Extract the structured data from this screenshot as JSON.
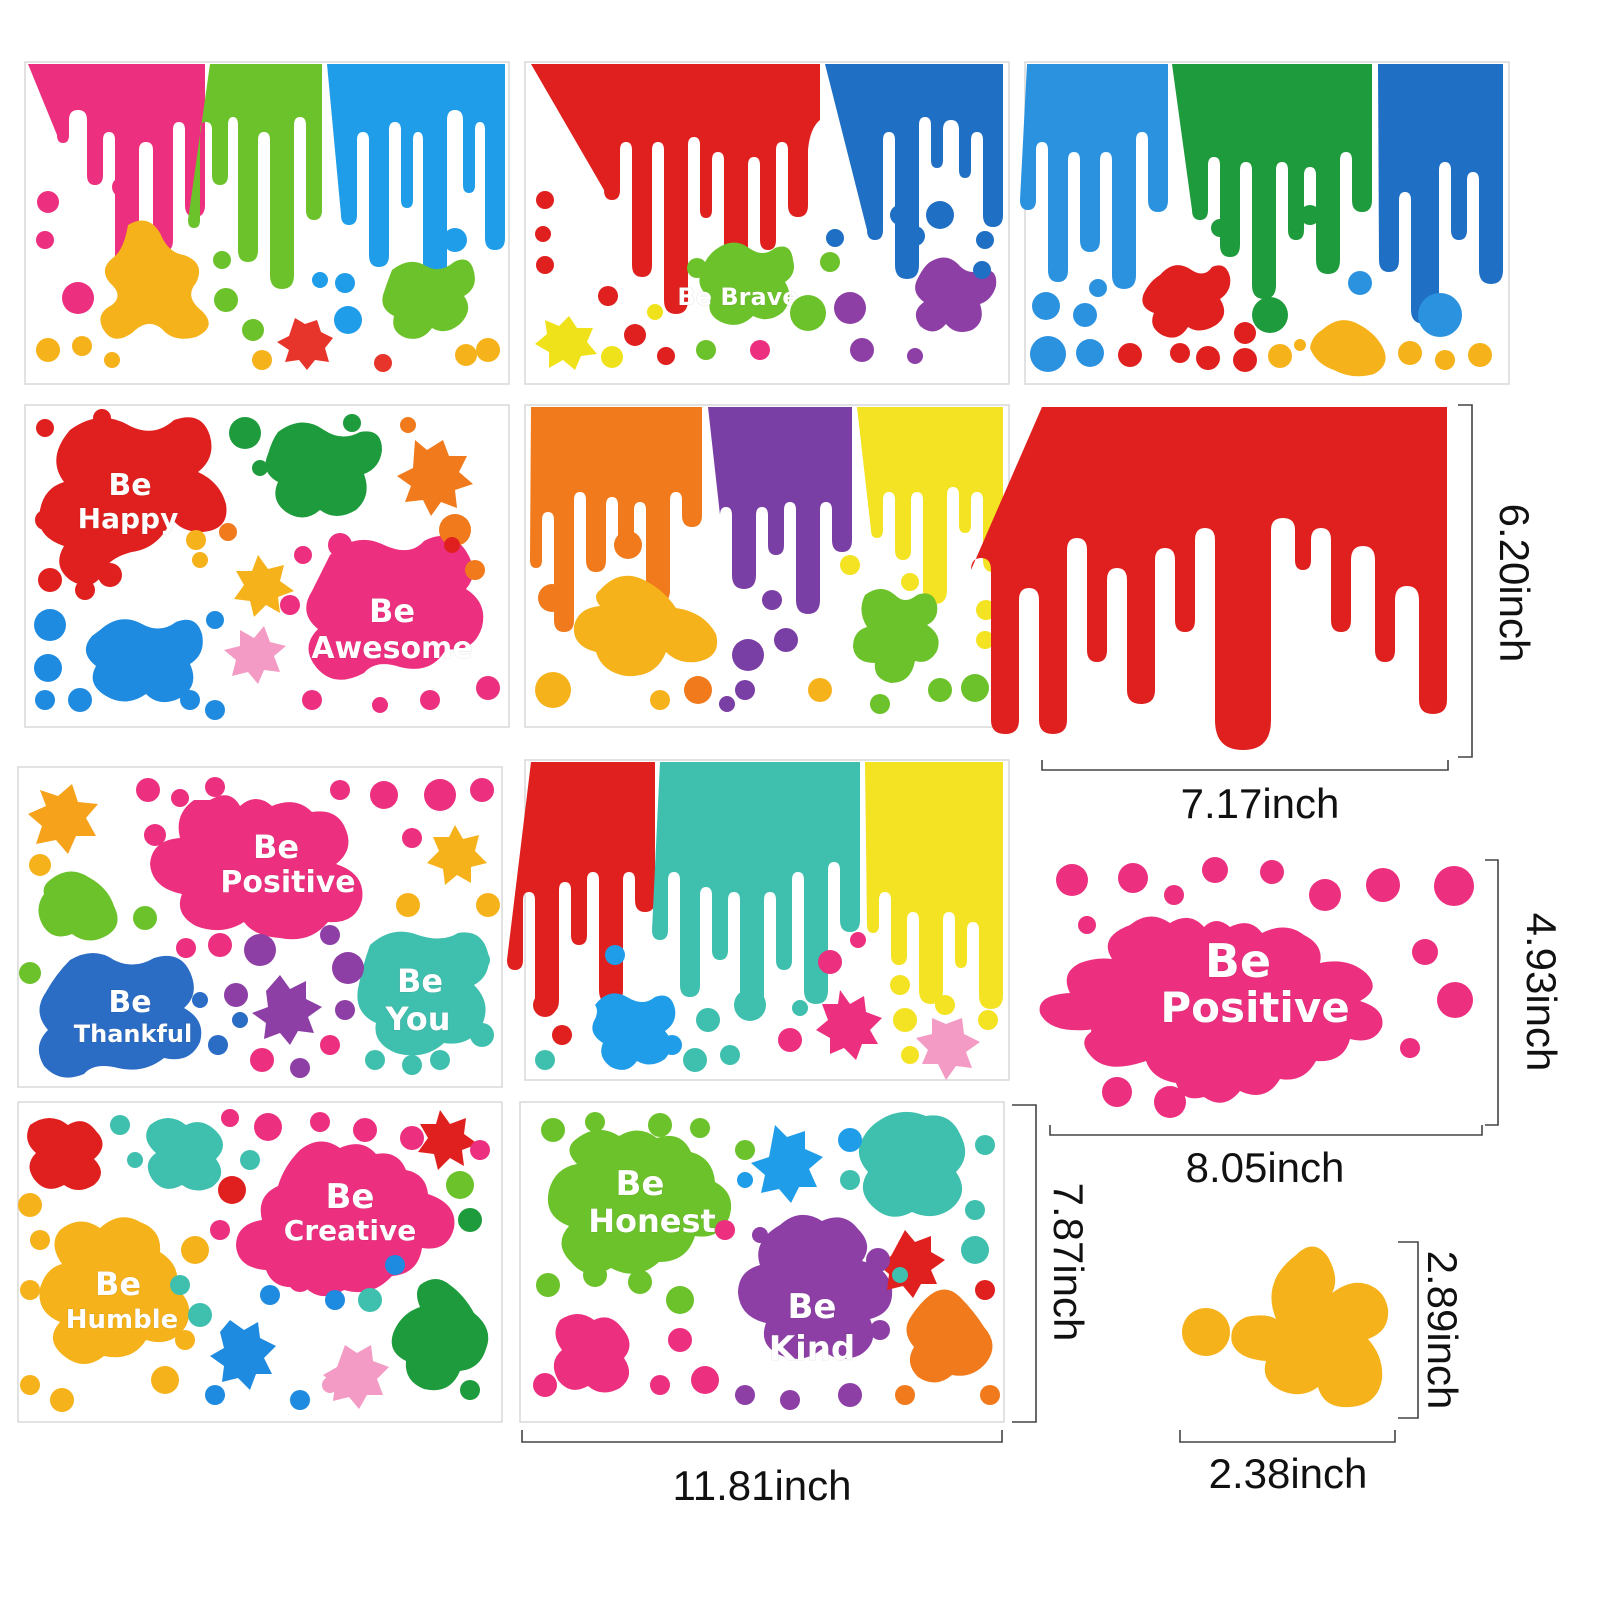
{
  "sheets": [
    {
      "phrases": [],
      "drip_colors": [
        "#ec2f7e",
        "#6cc22a",
        "#1f9de8"
      ],
      "splat_colors": [
        "#f6b21b",
        "#6cc22a",
        "#e8352c"
      ]
    },
    {
      "phrases": [
        "Be Brave"
      ],
      "drip_colors": [
        "#e0201e",
        "#1f6fc4"
      ],
      "splat_colors": [
        "#6cc22a",
        "#f0e21a",
        "#8d3fa6"
      ]
    },
    {
      "phrases": [],
      "drip_colors": [
        "#2b92df",
        "#1e9b3c",
        "#1f6fc4"
      ],
      "splat_colors": [
        "#e0201e",
        "#f6b21b"
      ]
    },
    {
      "phrases": [
        "Be Happy",
        "Be Awesome"
      ],
      "drip_colors": [],
      "splat_colors": [
        "#e0201e",
        "#1e9b3c",
        "#f07a1c",
        "#ec2f7e",
        "#1f8be0",
        "#f6b21b",
        "#f39bc4"
      ]
    },
    {
      "phrases": [],
      "drip_colors": [
        "#f07a1c",
        "#7a3fa4",
        "#f3e323"
      ],
      "splat_colors": [
        "#f6b21b",
        "#6cc22a"
      ]
    },
    {
      "phrases": [
        "Be Positive",
        "Be Thankful",
        "Be You"
      ],
      "drip_colors": [],
      "splat_colors": [
        "#ec2f7e",
        "#2b6cc4",
        "#3fbfae",
        "#f6b21b",
        "#6cc22a",
        "#8d3fa6"
      ]
    },
    {
      "phrases": [],
      "drip_colors": [
        "#e0201e",
        "#3fbfae",
        "#f3e323"
      ],
      "splat_colors": [
        "#1f9de8",
        "#ec2f7e",
        "#f39bc4"
      ]
    },
    {
      "phrases": [
        "Be Creative",
        "Be Humble"
      ],
      "drip_colors": [],
      "splat_colors": [
        "#ec2f7e",
        "#f6b21b",
        "#e0201e",
        "#3fbfae",
        "#1e9b3c",
        "#1f8be0",
        "#f39bc4"
      ]
    },
    {
      "phrases": [
        "Be Honest",
        "Be Kind"
      ],
      "drip_colors": [],
      "splat_colors": [
        "#6cc22a",
        "#8d3fa6",
        "#ec2f7e",
        "#3fbfae",
        "#f07a1c",
        "#1f9de8",
        "#e0201e"
      ]
    }
  ],
  "drip_sample": {
    "color": "#e0201e",
    "width_label": "7.17inch",
    "height_label": "6.20inch"
  },
  "splat_sample": {
    "color": "#ec2f7e",
    "phrase_top": "Be",
    "phrase_bottom": "Positive",
    "width_label": "8.05inch",
    "height_label": "4.93inch"
  },
  "blob_sample": {
    "color": "#f6b21b",
    "width_label": "2.38inch",
    "height_label": "2.89inch"
  },
  "sheet_size": {
    "width_label": "11.81inch",
    "height_label": "7.87inch"
  }
}
